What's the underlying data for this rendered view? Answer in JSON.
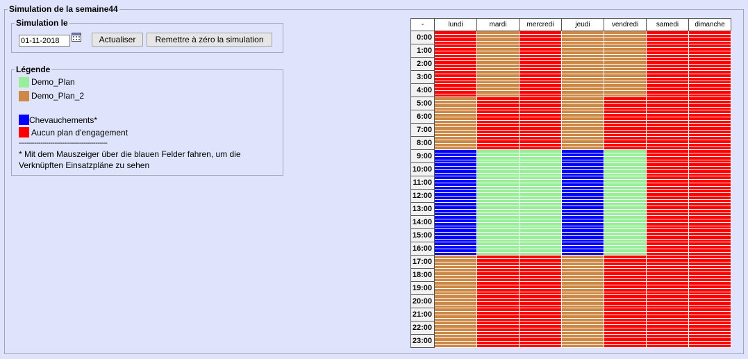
{
  "main": {
    "title": "Simulation de la semaine44"
  },
  "simulation": {
    "title": "Simulation le",
    "date_value": "01-11-2018",
    "refresh_label": "Actualiser",
    "reset_label": "Remettre à zéro la simulation"
  },
  "legend": {
    "title": "Légende",
    "items": [
      {
        "label": "Demo_Plan",
        "color": "#99ee99"
      },
      {
        "label": "Demo_Plan_2",
        "color": "#cc8844"
      },
      {
        "label": "Chevauchements*",
        "color": "#0000ff"
      },
      {
        "label": "Aucun plan d'engagement",
        "color": "#ff0000"
      }
    ],
    "separator": "---------------------------------------------",
    "note": "* Mit dem Mauszeiger über die blauen Felder fahren, um die Verknüpften Einsatzpläne zu sehen"
  },
  "schedule": {
    "corner_label": "-",
    "days": [
      "lundi",
      "mardi",
      "mercredi",
      "jeudi",
      "vendredi",
      "samedi",
      "dimanche"
    ],
    "hours": [
      "0:00",
      "1:00",
      "2:00",
      "3:00",
      "4:00",
      "5:00",
      "6:00",
      "7:00",
      "8:00",
      "9:00",
      "10:00",
      "11:00",
      "12:00",
      "13:00",
      "14:00",
      "15:00",
      "16:00",
      "17:00",
      "18:00",
      "19:00",
      "20:00",
      "21:00",
      "22:00",
      "23:00"
    ],
    "colors": {
      "G": "#99ee99",
      "O": "#cc8844",
      "B": "#0000ff",
      "R": "#ff0000"
    },
    "cells": [
      "ROROORR",
      "ROROORR",
      "ROROORR",
      "ROROORR",
      "ROROORR",
      "ORRORRR",
      "ORRORRR",
      "ORRORRR",
      "ORRORRR",
      "BGGBGRR",
      "BGGBGRR",
      "BGGBGRR",
      "BGGBGRR",
      "BGGBGRR",
      "BGGBGRR",
      "BGGBGRR",
      "BGGBGRR",
      "ORRORRR",
      "ORRORRR",
      "ORRORRR",
      "ORRORRR",
      "ORRORRR",
      "ORRORRR",
      "ORRORRR"
    ]
  }
}
